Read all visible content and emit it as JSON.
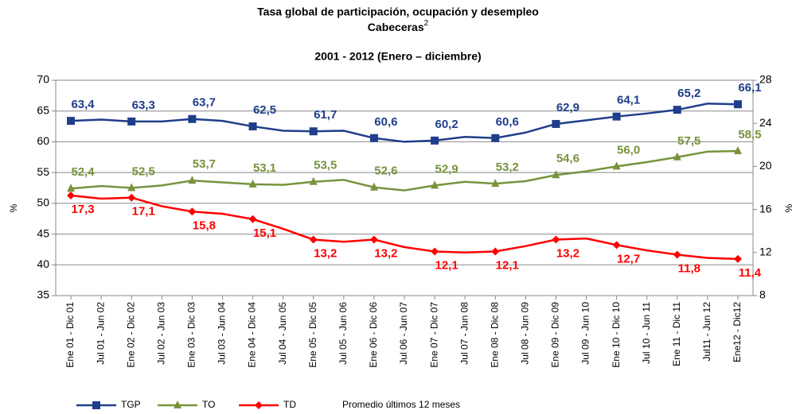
{
  "chart_data": {
    "type": "line",
    "title": "Tasa global de participación, ocupación y desempleo",
    "subtitle": "Cabeceras",
    "subtitle_note": "2",
    "period": "2001 - 2012 (Enero – diciembre)",
    "ylabel": "%",
    "y2label": "%",
    "legend_note": "Promedio últimos 12 meses",
    "categories": [
      "Ene 01 - Dic 01",
      "Jul 01 - Jun 02",
      "Ene 02 - Dic 02",
      "Jul 02 - Jun 03",
      "Ene 03 - Dic 03",
      "Jul 03 - Jun 04",
      "Ene 04 - Dic 04",
      "Jul 04 - Jun 05",
      "Ene 05 - Dic 05",
      "Jul 05 - Jun 06",
      "Ene 06 - Dic 06",
      "Jul 06 - Jun 07",
      "Ene 07 - Dic 07",
      "Jul 07 - Jun 08",
      "Ene 08 - Dic 08",
      "Jul 08 - Jun 09",
      "Ene 09 - Dic 09",
      "Jul 09 - Jun 10",
      "Ene 10 - Dic 10",
      "Jul 10 - Jun 11",
      "Ene 11 - Dic 11",
      "Jul11 - Jun 12",
      "Ene12 - Dic12"
    ],
    "ylim": [
      35,
      70
    ],
    "yticks": [
      35,
      40,
      45,
      50,
      55,
      60,
      65,
      70
    ],
    "y2lim": [
      8,
      28
    ],
    "y2ticks": [
      8,
      12,
      16,
      20,
      24,
      28
    ],
    "series": [
      {
        "name": "TGP",
        "color": "#1f3d8a",
        "marker": "square",
        "label_side": "above",
        "values": [
          63.4,
          63.6,
          63.3,
          63.3,
          63.7,
          63.4,
          62.5,
          61.8,
          61.7,
          61.8,
          60.6,
          60.0,
          60.2,
          60.8,
          60.6,
          61.5,
          62.9,
          63.5,
          64.1,
          64.6,
          65.2,
          66.2,
          66.1
        ],
        "value_labels": [
          "63,4",
          null,
          "63,3",
          null,
          "63,7",
          null,
          "62,5",
          null,
          "61,7",
          null,
          "60,6",
          null,
          "60,2",
          null,
          "60,6",
          null,
          "62,9",
          null,
          "64,1",
          null,
          "65,2",
          null,
          "66,1"
        ]
      },
      {
        "name": "TO",
        "color": "#77933c",
        "marker": "triangle",
        "label_side": "above",
        "values": [
          52.4,
          52.8,
          52.5,
          52.9,
          53.7,
          53.4,
          53.1,
          53.0,
          53.5,
          53.8,
          52.6,
          52.1,
          52.9,
          53.5,
          53.2,
          53.6,
          54.6,
          55.2,
          56.0,
          56.7,
          57.5,
          58.4,
          58.5
        ],
        "value_labels": [
          "52,4",
          null,
          "52,5",
          null,
          "53,7",
          null,
          "53,1",
          null,
          "53,5",
          null,
          "52,6",
          null,
          "52,9",
          null,
          "53,2",
          null,
          "54,6",
          null,
          "56,0",
          null,
          "57,5",
          null,
          "58,5"
        ]
      },
      {
        "name": "TD",
        "color": "#ff0000",
        "marker": "diamond",
        "label_side": "below",
        "axis": "y2",
        "values": [
          17.3,
          17.0,
          17.1,
          16.3,
          15.8,
          15.6,
          15.1,
          14.2,
          13.2,
          13.0,
          13.2,
          12.5,
          12.1,
          12.0,
          12.1,
          12.6,
          13.2,
          13.3,
          12.7,
          12.2,
          11.8,
          11.5,
          11.4
        ],
        "value_labels": [
          "17,3",
          null,
          "17,1",
          null,
          "15,8",
          null,
          "15,1",
          null,
          "13,2",
          null,
          "13,2",
          null,
          "12,1",
          null,
          "12,1",
          null,
          "13,2",
          null,
          "12,7",
          null,
          "11,8",
          null,
          "11,4"
        ]
      }
    ]
  }
}
